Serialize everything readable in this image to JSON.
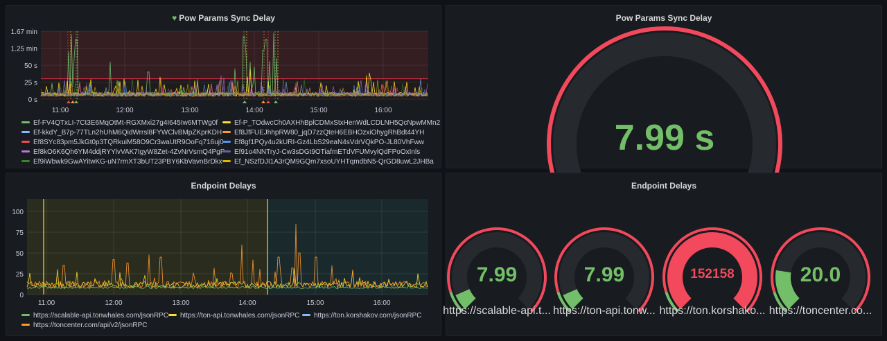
{
  "panels": {
    "sync_delay_graph": {
      "title": "Pow Params Sync Delay",
      "title_icon": "heart-icon",
      "y_ticks": [
        "1.67 min",
        "1.25 min",
        "50 s",
        "25 s",
        "0 s"
      ],
      "x_ticks": [
        "11:00",
        "12:00",
        "13:00",
        "14:00",
        "15:00",
        "16:00"
      ],
      "threshold_value": "30 s",
      "legend": [
        {
          "name": "Ef-FV4QTxLI-7Ct3E6MqOtMt-RGXMxi27g4I645Iw6MTWg0f",
          "color": "#73bf69"
        },
        {
          "name": "Ef-P_TOdwcCh0AXHhBplCDMxStxHenWdLCDLNH5QcNpwMMn2",
          "color": "#fade2a"
        },
        {
          "name": "Ef-kkdY_B7p-77TLn2hUhM6QidWrrsl8FYWClvBMpZKprKDH",
          "color": "#8ab8ff"
        },
        {
          "name": "Ef8JfFUEJhhpRW80_jqD7zzQteH6EBHOzxiOhygRhBdt44YH",
          "color": "#ff9830"
        },
        {
          "name": "Ef8SYc83pm5JkGt0p3TQRkuiM58O9Cr3waUtR9OoFq716uj0",
          "color": "#f2495c"
        },
        {
          "name": "Ef8gf1PQy4u2kURI-Gz4LbS29eaN4sVdrVQkPO-JL80VhFww",
          "color": "#5794f2"
        },
        {
          "name": "Ef8kO6K6Qh6YM4ddjRYYlvVAK7IgyW8Zet-4ZvNrVsmQ4PgP",
          "color": "#b877d9"
        },
        {
          "name": "Ef91o4NNTryJ-Cw3sDGt9OTiafmETdVFUMvylQdFPoOxInls",
          "color": "#705da0"
        },
        {
          "name": "Ef9iWbwk9GwAYitwKG-uN7rmXT3bUT23PBY6KbVavnBrDkx",
          "color": "#37872d"
        },
        {
          "name": "Ef_NSzfDJI1A3rQM9GQm7xsoUYHTqmdbN5-QrGD8uwL2JHBa",
          "color": "#e0b400"
        }
      ]
    },
    "sync_delay_gauge": {
      "title": "Pow Params Sync Delay",
      "value": "7.99 s",
      "fraction": 0.08
    },
    "endpoint_delays_graph": {
      "title": "Endpoint Delays",
      "y_ticks": [
        "100",
        "75",
        "50",
        "25",
        "0"
      ],
      "x_ticks": [
        "11:00",
        "12:00",
        "13:00",
        "14:00",
        "15:00",
        "16:00"
      ],
      "legend": [
        {
          "name": "https://scalable-api.tonwhales.com/jsonRPC",
          "color": "#73bf69"
        },
        {
          "name": "https://ton-api.tonwhales.com/jsonRPC",
          "color": "#fade2a"
        },
        {
          "name": "https://ton.korshakov.com/jsonRPC",
          "color": "#8ab8ff"
        },
        {
          "name": "https://toncenter.com/api/v2/jsonRPC",
          "color": "#ff9830"
        }
      ]
    },
    "endpoint_delays_gauges": {
      "title": "Endpoint Delays",
      "gauges": [
        {
          "value": "7.99",
          "name": "https://scalable-api.t...",
          "fraction": 0.08,
          "value_color": "#73bf69",
          "fill_color": "#73bf69"
        },
        {
          "value": "7.99",
          "name": "https://ton-api.tonw...",
          "fraction": 0.08,
          "value_color": "#73bf69",
          "fill_color": "#73bf69"
        },
        {
          "value": "152158",
          "name": "https://ton.korshako...",
          "fraction": 1.0,
          "value_color": "#f2495c",
          "fill_color": "#f2495c"
        },
        {
          "value": "20.0",
          "name": "https://toncenter.co...",
          "fraction": 0.2,
          "value_color": "#73bf69",
          "fill_color": "#73bf69"
        }
      ]
    }
  }
}
